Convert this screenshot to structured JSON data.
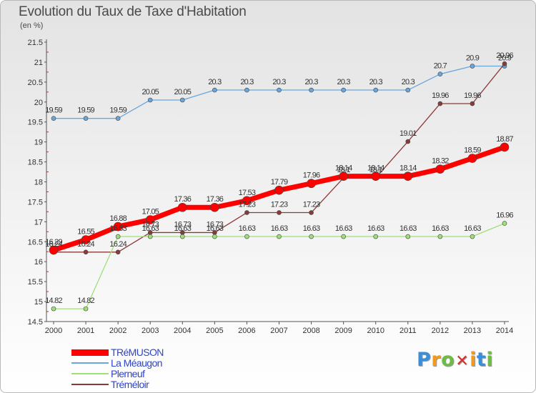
{
  "title": "Evolution du Taux de Taxe d'Habitation",
  "unit_label": "(en %)",
  "logo": {
    "text": "ProXiti",
    "letters": [
      "P",
      "r",
      "o",
      "x",
      "i",
      "t",
      "i"
    ],
    "colors": [
      "#3a8fd8",
      "#f39a1c",
      "#6cbd45",
      "#d6302a",
      "#f39a1c",
      "#3a8fd8",
      "#6cbd45"
    ]
  },
  "chart_data": {
    "type": "line",
    "title": "Evolution du Taux de Taxe d'Habitation",
    "ylabel": "(en %)",
    "xlabel": "",
    "x": [
      "2000",
      "2001",
      "2002",
      "2003",
      "2004",
      "2005",
      "2006",
      "2007",
      "2008",
      "2009",
      "2010",
      "2011",
      "2012",
      "2013",
      "2014"
    ],
    "ylim": [
      14.5,
      21.5
    ],
    "yticks": [
      "14.5",
      "15",
      "15.5",
      "16",
      "16.5",
      "17",
      "17.5",
      "18",
      "18.5",
      "19",
      "19.5",
      "20",
      "20.5",
      "21",
      "21.5"
    ],
    "grid": false,
    "legend_position": "bottom-left",
    "series": [
      {
        "name": "TRéMUSON",
        "color": "#ff0000",
        "values": [
          16.29,
          16.55,
          16.88,
          17.05,
          17.36,
          17.36,
          17.53,
          17.79,
          17.96,
          18.14,
          18.14,
          18.14,
          18.32,
          18.59,
          18.87
        ],
        "labels": [
          "16.29",
          "16.55",
          "16.88",
          "17.05",
          "17.36",
          "17.36",
          "17.53",
          "17.79",
          "17.96",
          "18.14",
          "18.14",
          "18.14",
          "18.32",
          "18.59",
          "18.87"
        ]
      },
      {
        "name": "La Méaugon",
        "color": "#6aa6dc",
        "values": [
          19.59,
          19.59,
          19.59,
          20.05,
          20.05,
          20.3,
          20.3,
          20.3,
          20.3,
          20.3,
          20.3,
          20.3,
          20.7,
          20.9,
          20.9
        ],
        "labels": [
          "19.59",
          "19.59",
          "19.59",
          "20.05",
          "20.05",
          "20.3",
          "20.3",
          "20.3",
          "20.3",
          "20.3",
          "20.3",
          "20.3",
          "20.7",
          "20.9",
          "20.9"
        ]
      },
      {
        "name": "Plerneuf",
        "color": "#9ee07a",
        "values": [
          14.82,
          14.82,
          16.63,
          16.63,
          16.63,
          16.63,
          16.63,
          16.63,
          16.63,
          16.63,
          16.63,
          16.63,
          16.63,
          16.63,
          16.96
        ],
        "labels": [
          "14.82",
          "14.82",
          "16.63",
          "16.63",
          "16.63",
          "16.63",
          "16.63",
          "16.63",
          "16.63",
          "16.63",
          "16.63",
          "16.63",
          "16.63",
          "16.63",
          "16.96"
        ]
      },
      {
        "name": "Tréméloir",
        "color": "#8b3a3a",
        "values": [
          16.24,
          16.24,
          16.24,
          16.73,
          16.73,
          16.73,
          17.23,
          17.23,
          17.23,
          18.1,
          18.1,
          19.01,
          19.96,
          19.96,
          20.96
        ],
        "labels": [
          "16.24",
          "16.24",
          "16.24",
          "16.73",
          "16.73",
          "16.73",
          "17.23",
          "17.23",
          "17.23",
          "18.1",
          "18.1",
          "19.01",
          "19.96",
          "19.96",
          "20.96"
        ]
      }
    ]
  }
}
